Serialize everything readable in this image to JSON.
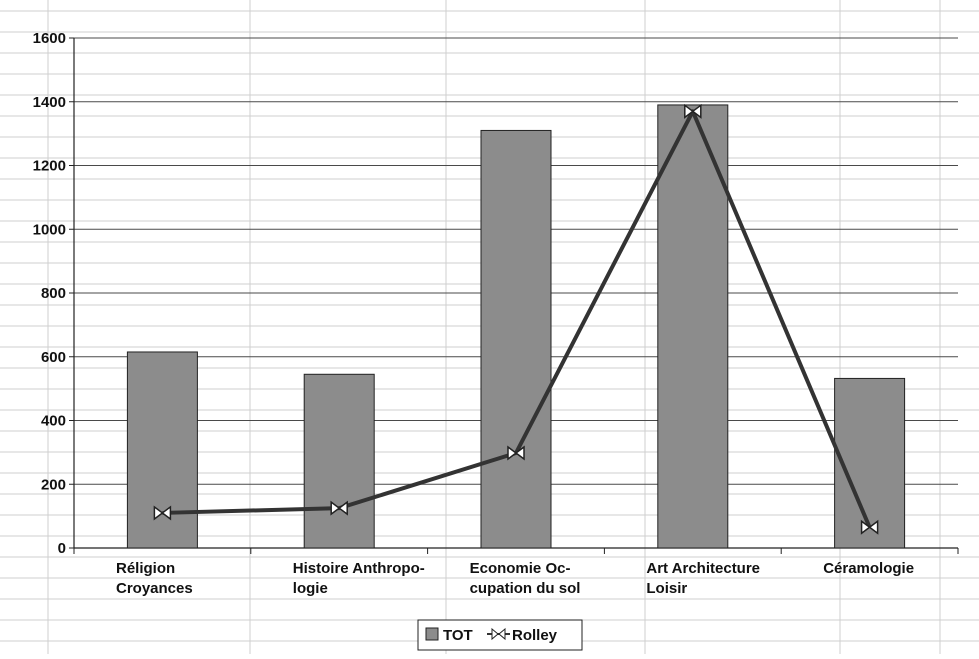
{
  "chart_data": {
    "type": "bar",
    "categories": [
      [
        "Réligion",
        "Croyances"
      ],
      [
        "Histoire Anthropo-",
        "logie"
      ],
      [
        "Economie Oc-",
        "cupation du sol"
      ],
      [
        "Art Architecture",
        "Loisir"
      ],
      [
        "Céramologie"
      ]
    ],
    "series": [
      {
        "name": "TOT",
        "kind": "bar",
        "values": [
          615,
          545,
          1310,
          1390,
          532
        ]
      },
      {
        "name": "Rolley",
        "kind": "line",
        "values": [
          110,
          125,
          298,
          1370,
          65
        ]
      }
    ],
    "y_ticks": [
      "0",
      "200",
      "400",
      "600",
      "800",
      "1000",
      "1200",
      "1400",
      "1600"
    ],
    "ylim": [
      0,
      1600
    ],
    "grid": true,
    "legend_position": "bottom-center",
    "colors": {
      "bar_fill": "#8c8c8c",
      "bar_stroke": "#222222",
      "line": "#333333",
      "grid_major": "#4a4a4a",
      "grid_minor": "#cfcfcf"
    }
  }
}
